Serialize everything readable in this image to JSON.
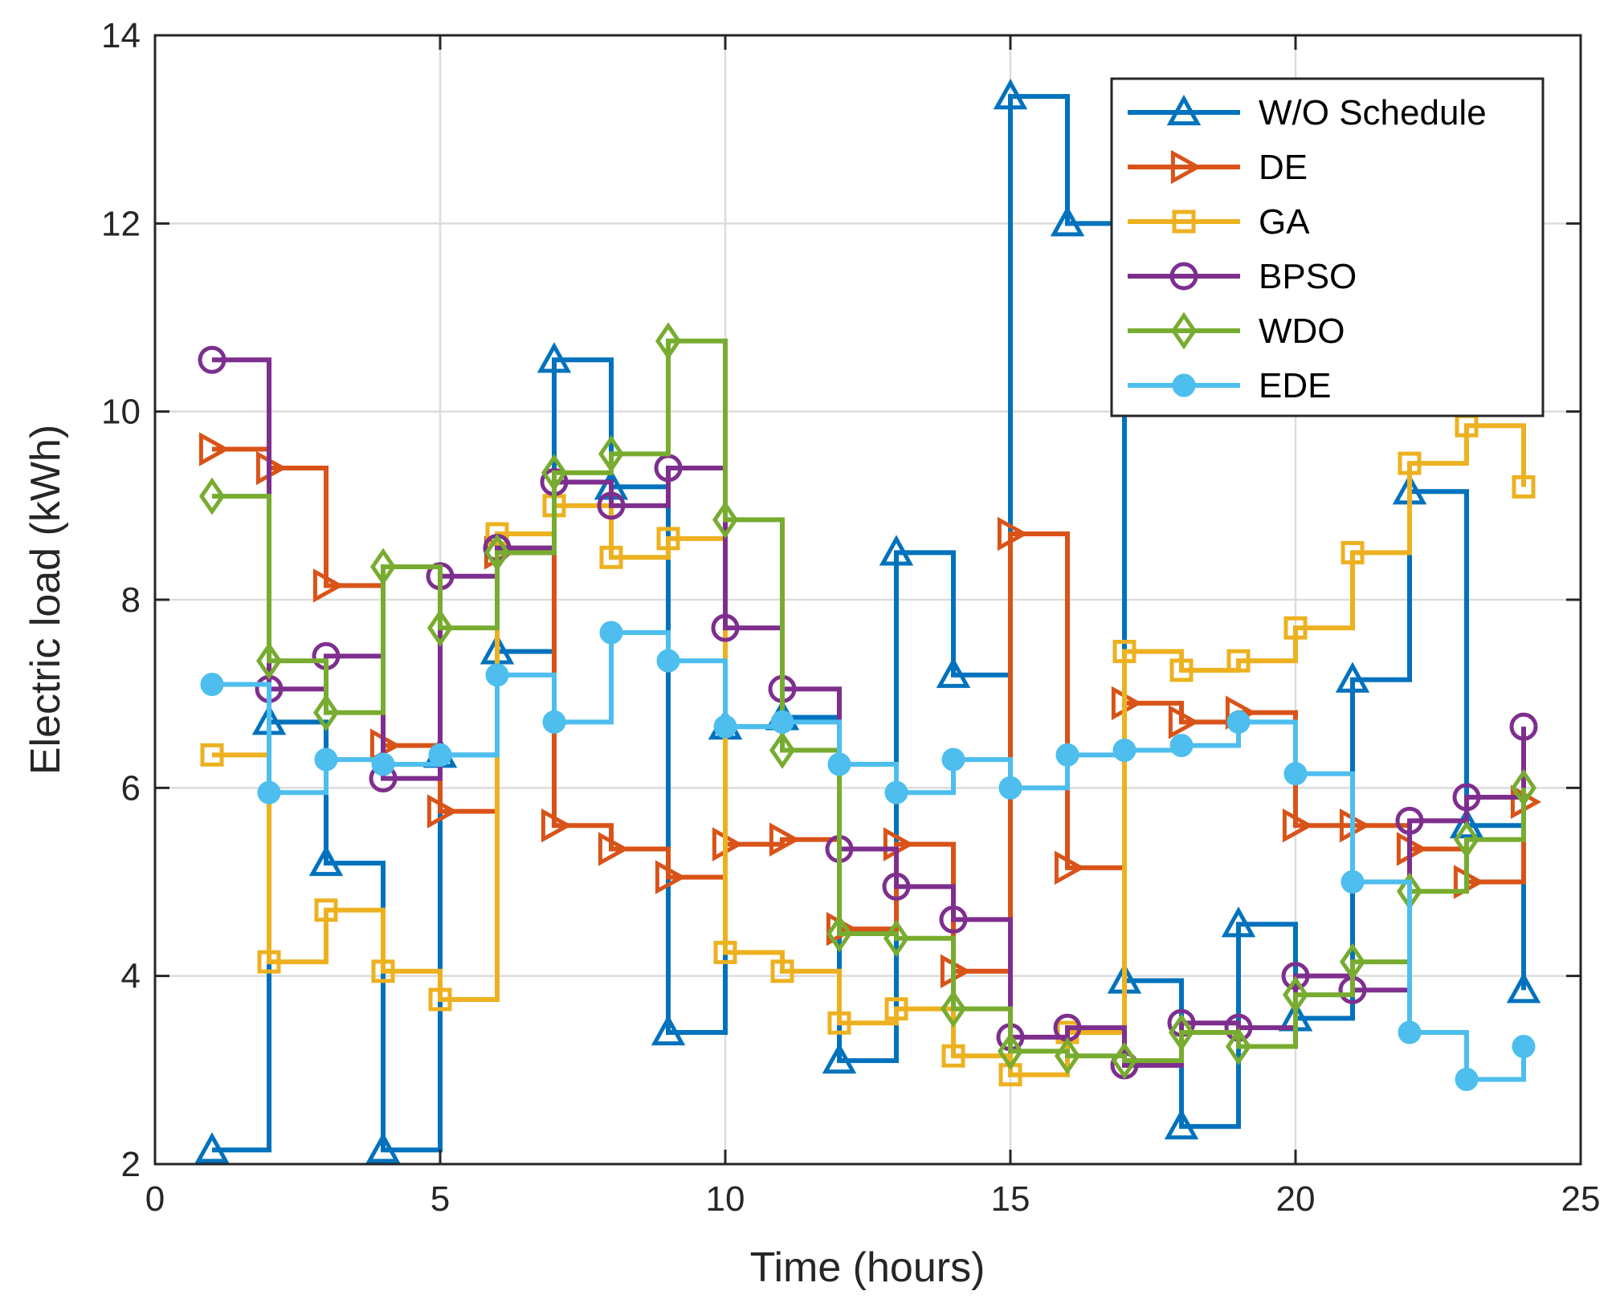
{
  "chart_data": {
    "type": "line",
    "step": true,
    "title": "",
    "xlabel": "Time (hours)",
    "ylabel": "Electric load (kWh)",
    "xlim": [
      0,
      25
    ],
    "ylim": [
      2,
      14
    ],
    "xticks": [
      0,
      5,
      10,
      15,
      20,
      25
    ],
    "yticks": [
      2,
      4,
      6,
      8,
      10,
      12,
      14
    ],
    "grid": true,
    "legend_position": "top-right",
    "x": [
      1,
      2,
      3,
      4,
      5,
      6,
      7,
      8,
      9,
      10,
      11,
      12,
      13,
      14,
      15,
      16,
      17,
      18,
      19,
      20,
      21,
      22,
      23,
      24
    ],
    "series": [
      {
        "name": "W/O Schedule",
        "color": "#0072BD",
        "marker": "triangle-up",
        "values": [
          2.15,
          6.7,
          5.2,
          2.15,
          6.35,
          7.45,
          10.55,
          9.2,
          3.4,
          6.65,
          6.75,
          3.1,
          8.5,
          7.2,
          13.35,
          12.0,
          3.95,
          2.4,
          4.55,
          3.55,
          7.15,
          9.15,
          5.6,
          3.85
        ]
      },
      {
        "name": "DE",
        "color": "#D95319",
        "marker": "triangle-right",
        "values": [
          9.6,
          9.4,
          8.15,
          6.45,
          5.75,
          8.5,
          5.6,
          5.35,
          5.05,
          5.4,
          5.45,
          4.5,
          5.4,
          4.05,
          8.7,
          5.15,
          6.9,
          6.7,
          6.8,
          5.6,
          5.6,
          5.35,
          5.0,
          5.85
        ]
      },
      {
        "name": "GA",
        "color": "#EDB120",
        "marker": "square",
        "values": [
          6.35,
          4.15,
          4.7,
          4.05,
          3.75,
          8.7,
          9.0,
          8.45,
          8.65,
          4.25,
          4.05,
          3.5,
          3.65,
          3.15,
          2.95,
          3.4,
          7.45,
          7.25,
          7.35,
          7.7,
          8.5,
          9.45,
          9.85,
          9.2
        ]
      },
      {
        "name": "BPSO",
        "color": "#7E2F8E",
        "marker": "circle",
        "values": [
          10.55,
          7.05,
          7.4,
          6.1,
          8.25,
          8.55,
          9.25,
          9.0,
          9.4,
          7.7,
          7.05,
          5.35,
          4.95,
          4.6,
          3.35,
          3.45,
          3.05,
          3.5,
          3.45,
          4.0,
          3.85,
          5.65,
          5.9,
          6.65
        ]
      },
      {
        "name": "WDO",
        "color": "#77AC30",
        "marker": "diamond",
        "values": [
          9.1,
          7.35,
          6.8,
          8.35,
          7.7,
          8.5,
          9.35,
          9.55,
          10.75,
          8.85,
          6.4,
          4.45,
          4.4,
          3.65,
          3.2,
          3.15,
          3.1,
          3.4,
          3.25,
          3.8,
          4.15,
          4.9,
          5.45,
          6.0
        ]
      },
      {
        "name": "EDE",
        "color": "#4DBEEE",
        "marker": "filled-circle",
        "values": [
          7.1,
          5.95,
          6.3,
          6.25,
          6.35,
          7.2,
          6.7,
          7.65,
          7.35,
          6.65,
          6.7,
          6.25,
          5.95,
          6.3,
          6.0,
          6.35,
          6.4,
          6.45,
          6.7,
          6.15,
          5.0,
          3.4,
          2.9,
          3.25
        ]
      }
    ]
  }
}
